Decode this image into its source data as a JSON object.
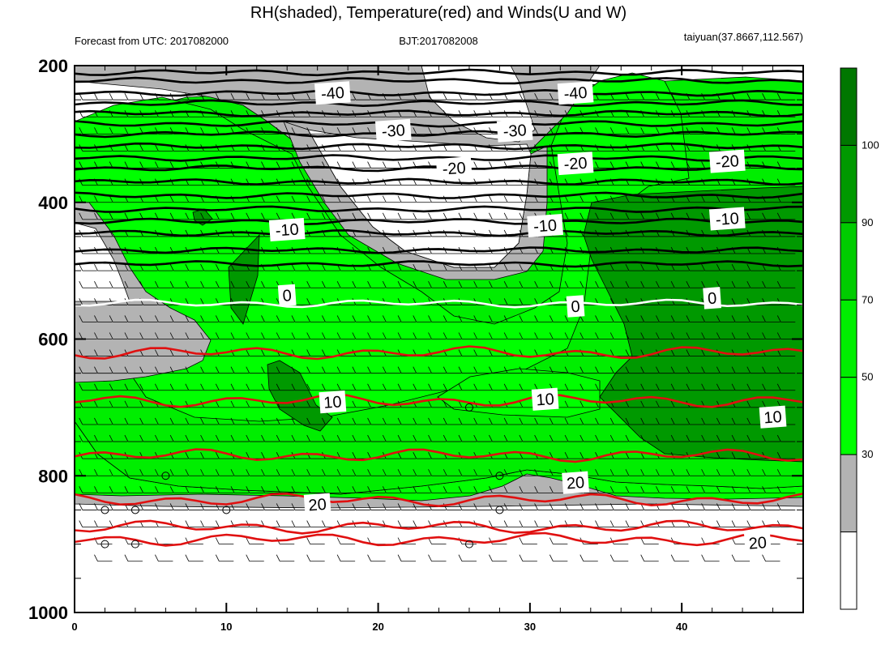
{
  "chart_data": {
    "type": "heatmap",
    "title": "RH(shaded), Temperature(red) and Winds(U and W)",
    "subtitle_left": "Forecast from UTC: 2017082000",
    "subtitle_center": "BJT:2017082008",
    "subtitle_right": "taiyuan(37.8667,112.567)",
    "x_range": [
      0,
      48
    ],
    "x_ticks": [
      "0",
      "10",
      "20",
      "30",
      "40"
    ],
    "y_range": [
      200,
      1000
    ],
    "y_reversed": true,
    "y_ticks": [
      "200",
      "400",
      "600",
      "800",
      "1000"
    ],
    "colorbar": {
      "levels": [
        "30",
        "50",
        "70",
        "90",
        "100"
      ],
      "colors": [
        "#ffffff",
        "#b3b3b3",
        "#00ff00",
        "#00ee00",
        "#00cc00",
        "#009900",
        "#007700"
      ]
    },
    "temperature_contours": [
      {
        "label": "-40",
        "pressure": 240
      },
      {
        "label": "-30",
        "pressure": 300
      },
      {
        "label": "-20",
        "pressure": 350
      },
      {
        "label": "-10",
        "pressure": 440
      },
      {
        "label": "0",
        "pressure": 548
      },
      {
        "label": "10",
        "pressure": 695
      },
      {
        "label": "20",
        "pressure": 860
      }
    ],
    "contour_labels": [
      {
        "text": "-40",
        "x": 17,
        "p": 240
      },
      {
        "text": "-40",
        "x": 33,
        "p": 240
      },
      {
        "text": "-30",
        "x": 21,
        "p": 295
      },
      {
        "text": "-30",
        "x": 29,
        "p": 295
      },
      {
        "text": "-20",
        "x": 25,
        "p": 350
      },
      {
        "text": "-20",
        "x": 33,
        "p": 343
      },
      {
        "text": "-20",
        "x": 43,
        "p": 340
      },
      {
        "text": "-10",
        "x": 14,
        "p": 440
      },
      {
        "text": "-10",
        "x": 31,
        "p": 434
      },
      {
        "text": "-10",
        "x": 43,
        "p": 424
      },
      {
        "text": "0",
        "x": 14,
        "p": 536
      },
      {
        "text": "0",
        "x": 33,
        "p": 552
      },
      {
        "text": "0",
        "x": 42,
        "p": 540
      },
      {
        "text": "10",
        "x": 17,
        "p": 692
      },
      {
        "text": "10",
        "x": 31,
        "p": 688
      },
      {
        "text": "10",
        "x": 46,
        "p": 714
      },
      {
        "text": "20",
        "x": 16,
        "p": 842
      },
      {
        "text": "20",
        "x": 33,
        "p": 810
      },
      {
        "text": "20",
        "x": 45,
        "p": 898
      }
    ]
  }
}
